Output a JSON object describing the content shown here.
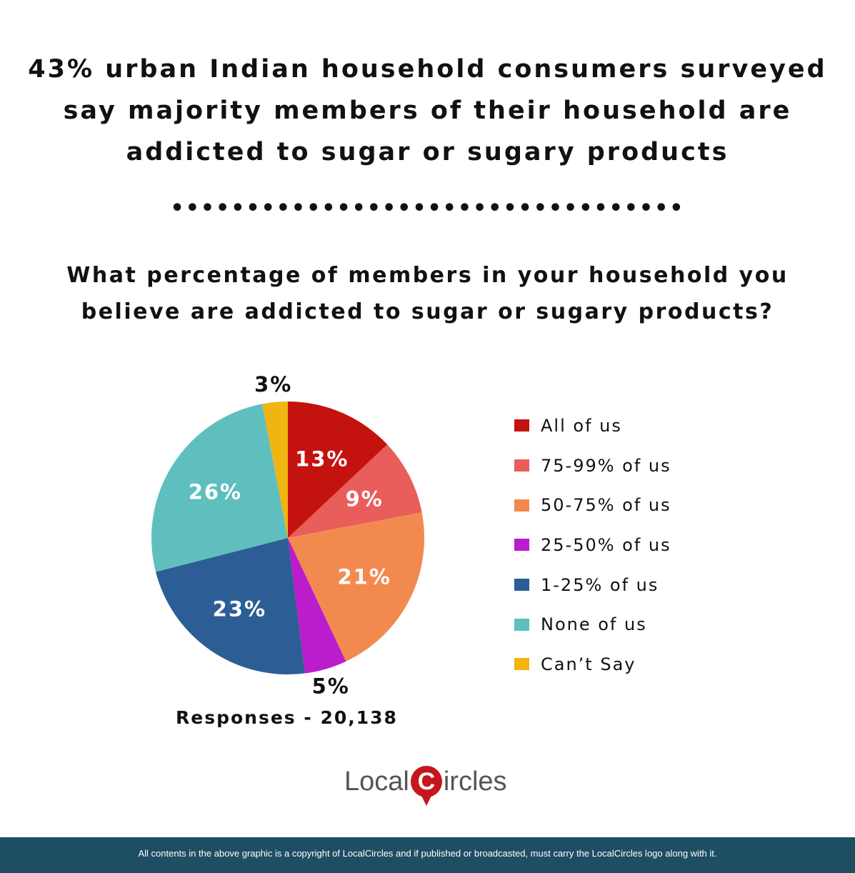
{
  "headline": [
    "43% urban Indian household consumers surveyed",
    "say majority members of their household are",
    "addicted to sugar or sugary products"
  ],
  "separator": "••••••••••••••••••••••••••••••••••",
  "question": [
    "What percentage of members in your household you",
    "believe are addicted to sugar or sugary products?"
  ],
  "chart_data": {
    "type": "pie",
    "title": "What percentage of members in your household you believe are addicted to sugar or sugary products?",
    "start": "top, clockwise",
    "legend_placement": "right",
    "slices": [
      {
        "label": "All of us",
        "value": 13,
        "display": "13%",
        "color": "#c4120f"
      },
      {
        "label": "75-99% of us",
        "value": 9,
        "display": "9%",
        "color": "#e95d5a"
      },
      {
        "label": "50-75% of us",
        "value": 21,
        "display": "21%",
        "color": "#f28a4f"
      },
      {
        "label": "25-50% of us",
        "value": 5,
        "display": "5%",
        "color": "#bb1ccc"
      },
      {
        "label": "1-25% of us",
        "value": 23,
        "display": "23%",
        "color": "#2c5e95"
      },
      {
        "label": "None of us",
        "value": 26,
        "display": "26%",
        "color": "#5fbfbf"
      },
      {
        "label": "Can’t Say",
        "value": 3,
        "display": "3%",
        "color": "#f0b511"
      }
    ]
  },
  "responses": "Responses - 20,138",
  "logo": {
    "left": "Local",
    "pin": "C",
    "right": "ircles"
  },
  "footer": "All contents in the above graphic is a copyright of LocalCircles and if published or broadcasted, must carry the LocalCircles logo along with it."
}
